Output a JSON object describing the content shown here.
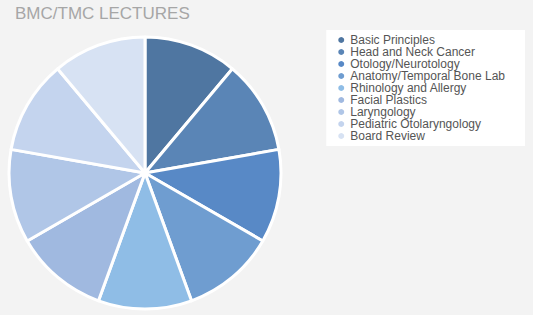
{
  "chart_data": {
    "type": "pie",
    "title": "BMC/TMC LECTURES",
    "categories": [
      "Basic Principles",
      "Head and Neck Cancer",
      "Otology/Neurotology",
      "Anatomy/Temporal Bone Lab",
      "Rhinology and Allergy",
      "Facial Plastics",
      "Laryngology",
      "Pediatric Otolaryngology",
      "Board Review"
    ],
    "values": [
      11.1,
      11.1,
      11.1,
      11.1,
      11.1,
      11.1,
      11.1,
      11.1,
      11.1
    ],
    "colors": [
      "#4f76a1",
      "#5a85b6",
      "#5889c6",
      "#6f9dd0",
      "#8fbde6",
      "#a0b9e0",
      "#b0c6e7",
      "#c4d4ee",
      "#d7e2f3"
    ],
    "legend": "top-right"
  }
}
